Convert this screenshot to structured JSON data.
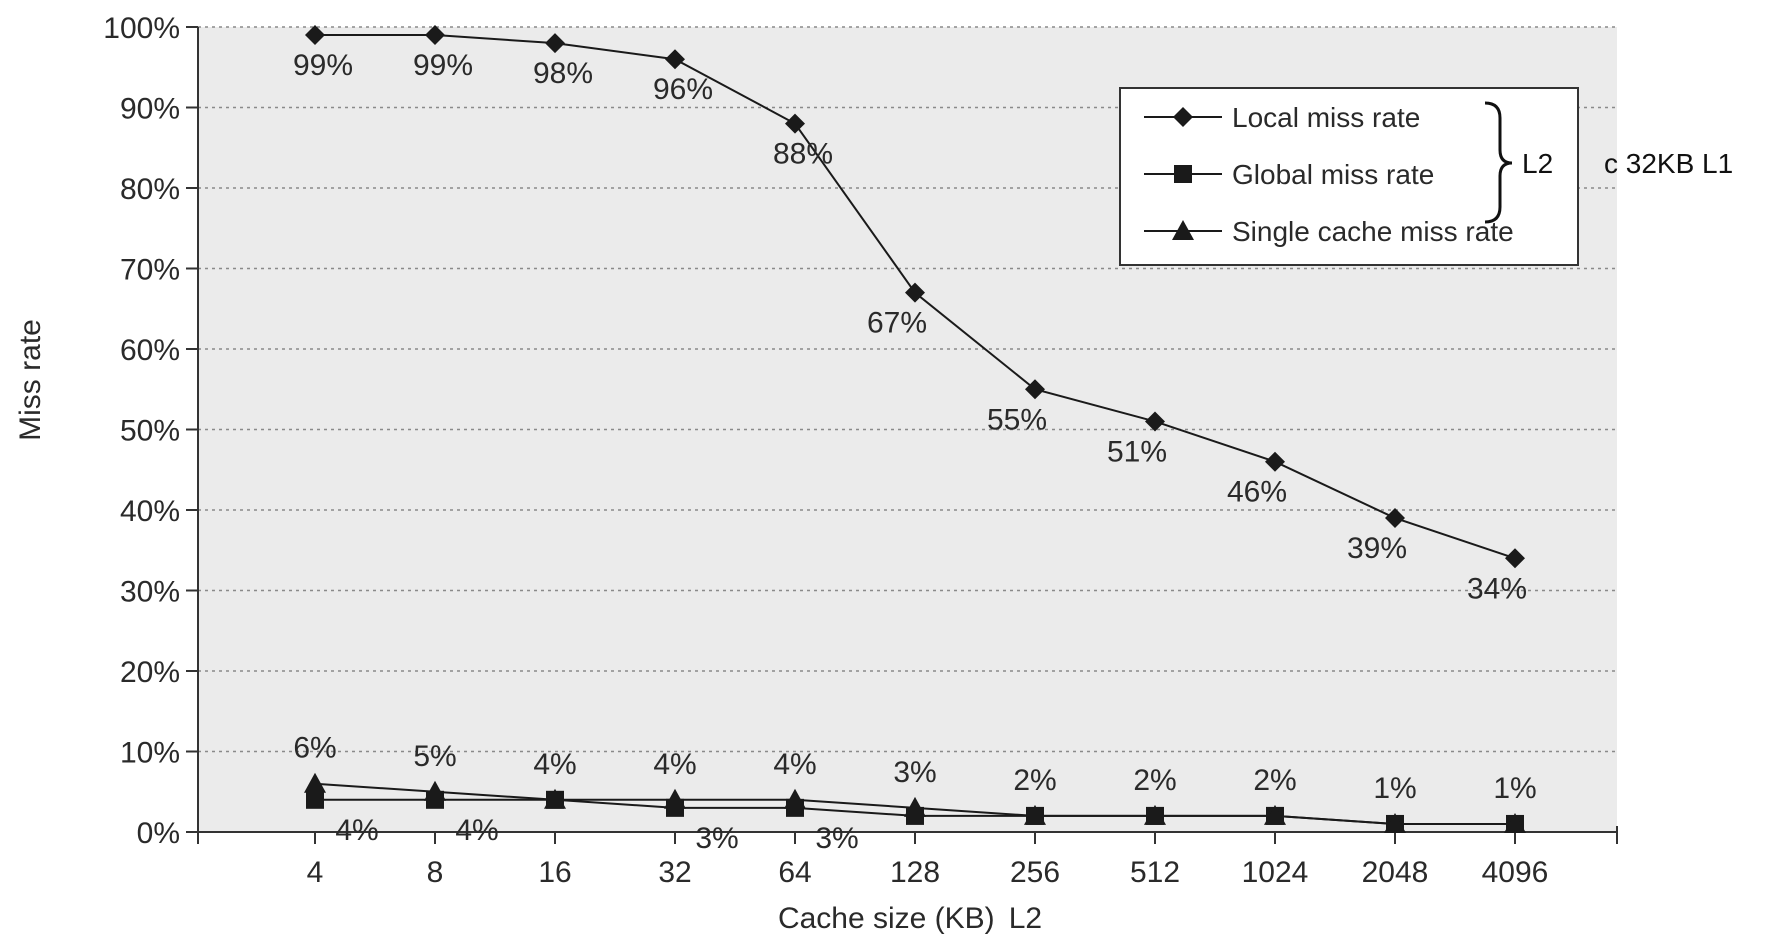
{
  "chart_data": {
    "type": "line",
    "xlabel": "Cache size (KB)",
    "xlabel_suffix": "L2",
    "ylabel": "Miss rate",
    "categories": [
      "4",
      "8",
      "16",
      "32",
      "64",
      "128",
      "256",
      "512",
      "1024",
      "2048",
      "4096"
    ],
    "ylim": [
      0,
      100
    ],
    "yticks": [
      0,
      10,
      20,
      30,
      40,
      50,
      60,
      70,
      80,
      90,
      100
    ],
    "ytick_labels": [
      "0%",
      "10%",
      "20%",
      "30%",
      "40%",
      "50%",
      "60%",
      "70%",
      "80%",
      "90%",
      "100%"
    ],
    "grid": "horizontal dotted",
    "background": "#ebebeb",
    "legend_position": "top-right",
    "series": [
      {
        "name": "Local miss rate",
        "marker": "diamond",
        "values": [
          99,
          99,
          98,
          96,
          88,
          67,
          55,
          51,
          46,
          39,
          34
        ],
        "labels": [
          "99%",
          "99%",
          "98%",
          "96%",
          "88%",
          "67%",
          "55%",
          "51%",
          "46%",
          "39%",
          "34%"
        ],
        "label_position": "below"
      },
      {
        "name": "Global miss rate",
        "marker": "square",
        "values": [
          4,
          4,
          4,
          3,
          3,
          2,
          2,
          2,
          2,
          1,
          1
        ],
        "labels": [
          "4%",
          "4%",
          "",
          "3%",
          "3%",
          "",
          "",
          "",
          "",
          "",
          ""
        ],
        "label_position": "below"
      },
      {
        "name": "Single cache miss rate",
        "marker": "triangle",
        "values": [
          6,
          5,
          4,
          4,
          4,
          3,
          2,
          2,
          2,
          1,
          1
        ],
        "labels": [
          "6%",
          "5%",
          "4%",
          "4%",
          "4%",
          "3%",
          "2%",
          "2%",
          "2%",
          "1%",
          "1%"
        ],
        "label_position": "above"
      }
    ],
    "annotation": {
      "bracket_text_1": "L2",
      "bracket_text_2": "c 32KB  L1"
    }
  }
}
